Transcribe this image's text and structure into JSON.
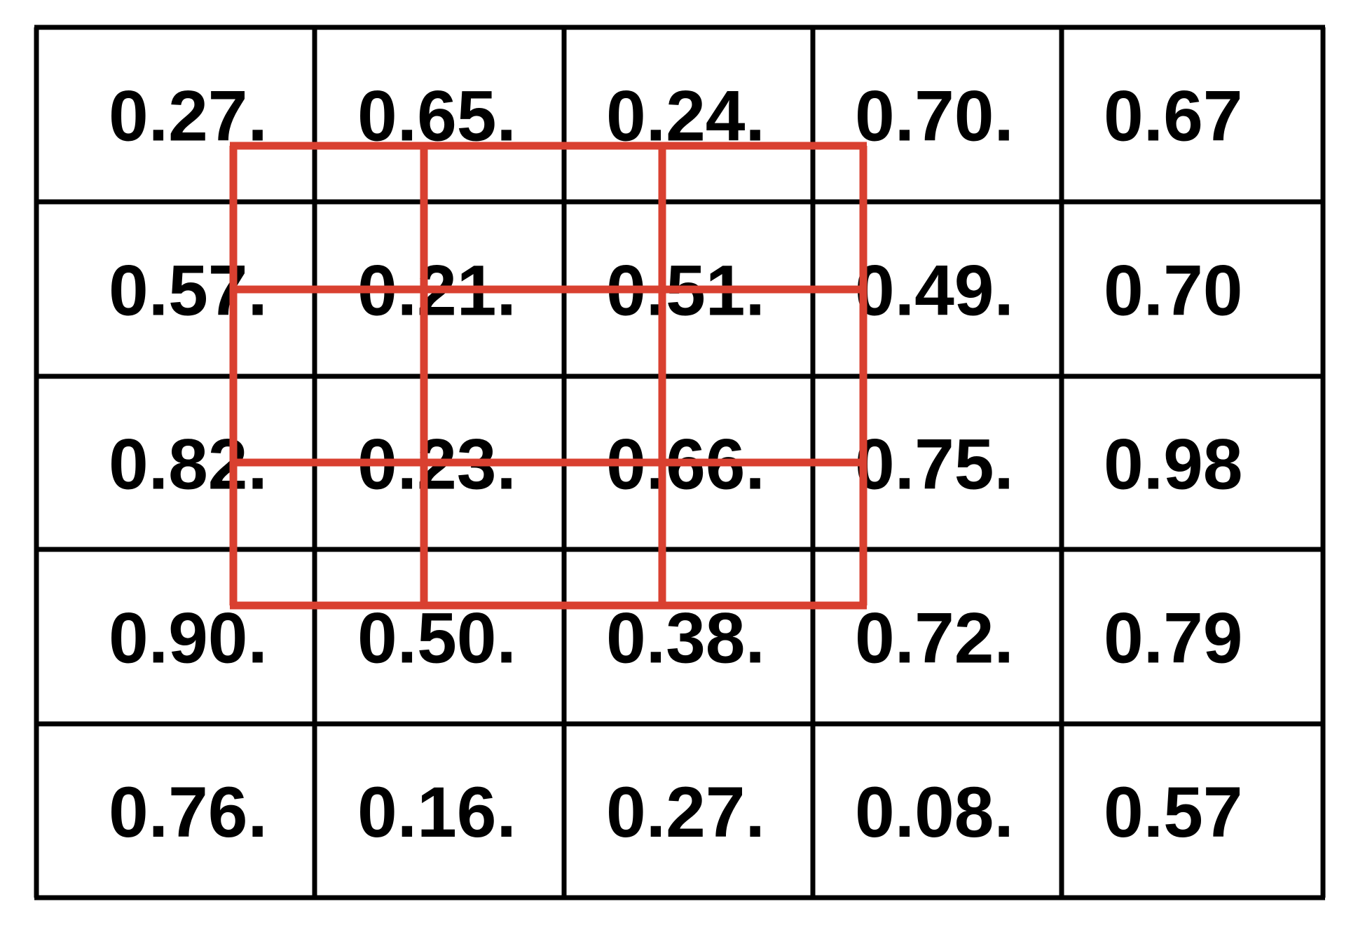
{
  "grid": {
    "rows": [
      [
        "0.27.",
        "0.65.",
        "0.24.",
        "0.70.",
        "0.67"
      ],
      [
        "0.57.",
        "0.21.",
        "0.51.",
        "0.49.",
        "0.70"
      ],
      [
        "0.82.",
        "0.23.",
        "0.66.",
        "0.75.",
        "0.98"
      ],
      [
        "0.90.",
        "0.50.",
        "0.38.",
        "0.72.",
        "0.79"
      ],
      [
        "0.76.",
        "0.16.",
        "0.27.",
        "0.08.",
        "0.57"
      ]
    ]
  },
  "colors": {
    "grid_line": "#000000",
    "overlay_line": "#d94030",
    "text": "#000000",
    "background": "#ffffff"
  }
}
